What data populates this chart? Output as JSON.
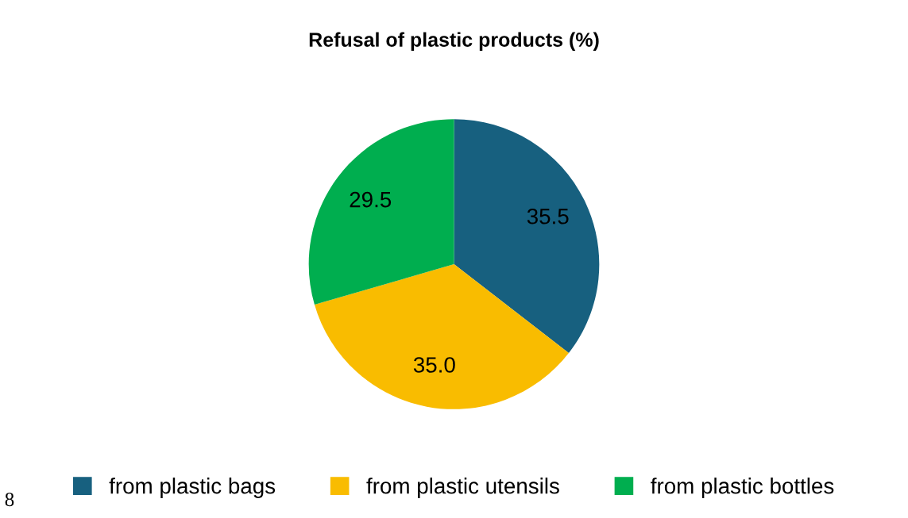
{
  "chart_data": {
    "type": "pie",
    "title": "Refusal of plastic products (%)",
    "categories": [
      "from plastic bags",
      "from plastic utensils",
      "from plastic bottles"
    ],
    "values": [
      35.5,
      35.0,
      29.5
    ],
    "colors": [
      "#17607f",
      "#f9bc00",
      "#00ae4f"
    ],
    "value_labels": [
      "35.5",
      "35.0",
      "29.5"
    ],
    "legend": "bottom",
    "annotations": [
      "8"
    ]
  }
}
